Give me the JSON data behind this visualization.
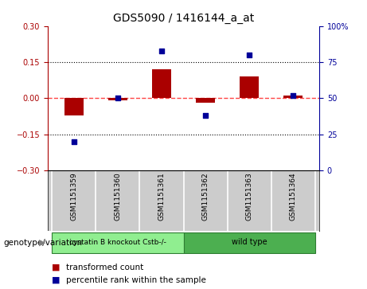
{
  "title": "GDS5090 / 1416144_a_at",
  "samples": [
    "GSM1151359",
    "GSM1151360",
    "GSM1151361",
    "GSM1151362",
    "GSM1151363",
    "GSM1151364"
  ],
  "bar_values": [
    -0.072,
    -0.01,
    0.12,
    -0.02,
    0.09,
    0.01
  ],
  "percentile_values": [
    20,
    50,
    83,
    38,
    80,
    52
  ],
  "ylim_left": [
    -0.3,
    0.3
  ],
  "ylim_right": [
    0,
    100
  ],
  "yticks_left": [
    -0.3,
    -0.15,
    0,
    0.15,
    0.3
  ],
  "yticks_right": [
    0,
    25,
    50,
    75,
    100
  ],
  "hlines": [
    0.15,
    -0.15
  ],
  "bar_color": "#AA0000",
  "scatter_color": "#000099",
  "zero_line_color": "#FF4444",
  "group1_label": "cystatin B knockout Cstb-/-",
  "group2_label": "wild type",
  "group1_indices": [
    0,
    1,
    2
  ],
  "group2_indices": [
    3,
    4,
    5
  ],
  "group1_color": "#90EE90",
  "group2_color": "#4CAF50",
  "genotype_label": "genotype/variation",
  "legend_bar_label": "transformed count",
  "legend_scatter_label": "percentile rank within the sample",
  "background_color": "#FFFFFF",
  "plot_bg_color": "#FFFFFF",
  "sample_box_color": "#CCCCCC"
}
